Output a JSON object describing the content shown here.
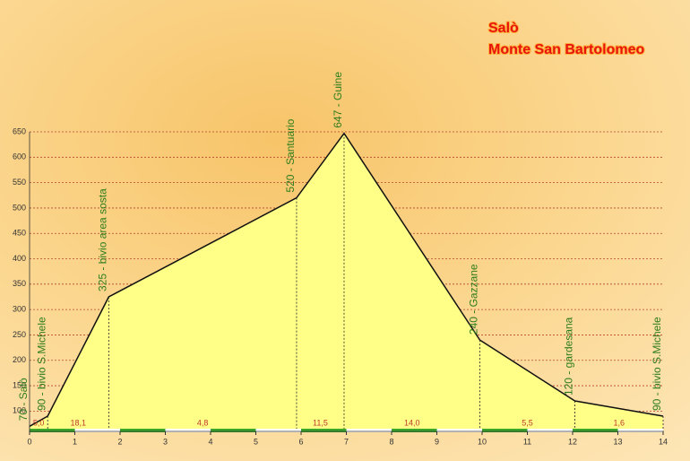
{
  "chart_data": {
    "type": "area",
    "title": "Salò",
    "subtitle": "Monte San Bartolomeo",
    "x": [
      0,
      0.4,
      1.75,
      5.9,
      6.95,
      9.95,
      12.05,
      14
    ],
    "values": [
      70,
      90,
      325,
      520,
      647,
      240,
      120,
      90
    ],
    "value_labels": [
      "70 - Salò",
      "90 - bivio S.Michele",
      "325 - bivio area sosta",
      "520 - Santuario",
      "647 - Guine",
      "240 - Gazzane",
      "120 - gardesana",
      "90 - bivio S.Michele"
    ],
    "grades": [
      "5,0",
      "18,1",
      "4,8",
      "11,5",
      "14,0",
      "5,5",
      "1,6"
    ],
    "color": "#ffff88",
    "xlim": [
      0,
      14
    ],
    "xticks": [
      0,
      1,
      2,
      3,
      4,
      5,
      6,
      7,
      8,
      9,
      10,
      11,
      12,
      13,
      14
    ],
    "ylim": [
      60,
      650
    ],
    "yticks": [
      100,
      150,
      200,
      250,
      300,
      350,
      400,
      450,
      500,
      550,
      600,
      650
    ],
    "grid": true
  }
}
